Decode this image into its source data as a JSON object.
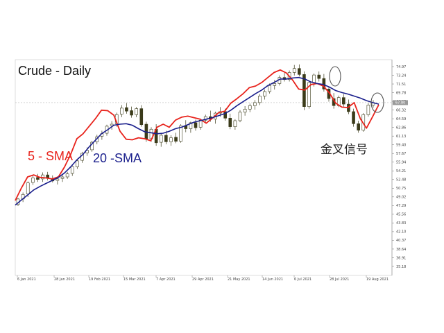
{
  "chart_data": {
    "type": "candlestick",
    "title": "Crude - Daily",
    "yticks": [
      "74.97",
      "73.24",
      "71.51",
      "69.78",
      "68.05",
      "66.32",
      "64.59",
      "62.86",
      "61.13",
      "59.40",
      "57.67",
      "55.94",
      "54.21",
      "52.48",
      "50.75",
      "49.02",
      "47.29",
      "45.56",
      "43.83",
      "42.10",
      "40.37",
      "38.64",
      "36.91",
      "35.18"
    ],
    "ylim": [
      35.18,
      74.97
    ],
    "current_price": "67.80",
    "xticks": [
      "6 Jan 2021",
      "28 Jan 2021",
      "19 Feb 2021",
      "15 Mar 2021",
      "7 Apr 2021",
      "29 Apr 2021",
      "21 May 2021",
      "14 Jun 2021",
      "6 Jul 2021",
      "28 Jul 2021",
      "19 Aug 2021"
    ],
    "series": [
      {
        "name": "5 - SMA",
        "color": "#e8231c",
        "values": [
          48.3,
          50.8,
          53.0,
          53.4,
          52.9,
          52.8,
          52.6,
          53.0,
          55.0,
          57.5,
          60.6,
          61.6,
          63.1,
          64.6,
          66.3,
          66.2,
          65.3,
          62.1,
          60.5,
          60.4,
          60.8,
          60.6,
          60.2,
          62.9,
          63.5,
          62.9,
          64.3,
          64.9,
          65.1,
          64.8,
          64.5,
          63.7,
          64.7,
          65.8,
          66.1,
          67.7,
          68.6,
          69.6,
          70.8,
          71.1,
          71.8,
          72.8,
          73.8,
          74.3,
          73.7,
          72.3,
          70.5,
          70.3,
          71.4,
          71.6,
          71.1,
          69.7,
          67.7,
          66.9,
          66.8,
          67.8,
          64.6,
          62.7,
          65.0,
          67.4
        ]
      },
      {
        "name": "20 -SMA",
        "color": "#1a1f8c",
        "values": [
          47.4,
          48.4,
          49.4,
          50.4,
          51.1,
          51.7,
          52.3,
          52.9,
          53.8,
          55.0,
          56.4,
          57.5,
          59.0,
          60.3,
          61.6,
          62.4,
          63.3,
          63.5,
          63.6,
          63.3,
          62.6,
          62.0,
          61.8,
          61.6,
          61.7,
          62.1,
          62.6,
          62.9,
          63.4,
          63.9,
          64.2,
          64.5,
          64.8,
          65.2,
          65.6,
          66.3,
          67.2,
          68.0,
          68.8,
          69.6,
          70.3,
          71.2,
          71.8,
          72.5,
          72.5,
          72.7,
          72.8,
          72.5,
          71.9,
          71.6,
          71.4,
          70.9,
          70.2,
          69.8,
          69.5,
          69.1,
          68.7,
          68.2,
          67.8,
          67.5
        ]
      }
    ],
    "candles": [
      [
        47.5,
        48.8,
        47.2,
        48.6
      ],
      [
        48.6,
        49.9,
        48.0,
        49.5
      ],
      [
        49.6,
        52.1,
        49.0,
        51.8
      ],
      [
        51.9,
        53.3,
        51.4,
        52.8
      ],
      [
        52.9,
        53.6,
        52.0,
        52.5
      ],
      [
        52.6,
        53.9,
        52.0,
        53.4
      ],
      [
        53.4,
        54.0,
        52.3,
        52.7
      ],
      [
        52.6,
        53.3,
        51.9,
        52.2
      ],
      [
        52.3,
        53.1,
        51.5,
        52.6
      ],
      [
        52.7,
        53.4,
        52.0,
        53.0
      ],
      [
        53.0,
        54.0,
        52.6,
        53.6
      ],
      [
        53.7,
        55.3,
        53.2,
        55.1
      ],
      [
        55.0,
        56.5,
        54.6,
        56.2
      ],
      [
        56.3,
        58.0,
        55.8,
        57.7
      ],
      [
        57.8,
        58.9,
        57.2,
        58.3
      ],
      [
        58.4,
        60.2,
        58.0,
        59.9
      ],
      [
        60.0,
        61.4,
        59.5,
        61.0
      ],
      [
        61.1,
        62.2,
        60.4,
        61.6
      ],
      [
        61.7,
        63.4,
        61.2,
        63.1
      ],
      [
        63.2,
        64.1,
        62.4,
        63.5
      ],
      [
        63.6,
        65.8,
        63.0,
        65.4
      ],
      [
        65.5,
        67.3,
        64.9,
        66.7
      ],
      [
        66.8,
        67.7,
        65.6,
        66.1
      ],
      [
        66.2,
        67.0,
        64.8,
        65.3
      ],
      [
        65.4,
        66.9,
        64.9,
        66.6
      ],
      [
        66.6,
        67.3,
        63.0,
        63.4
      ],
      [
        63.5,
        64.0,
        60.0,
        60.6
      ],
      [
        60.6,
        62.9,
        60.0,
        62.5
      ],
      [
        62.5,
        63.5,
        59.2,
        59.8
      ],
      [
        59.9,
        61.7,
        59.0,
        61.3
      ],
      [
        61.3,
        62.2,
        59.5,
        60.0
      ],
      [
        60.0,
        61.3,
        59.2,
        60.8
      ],
      [
        60.9,
        61.8,
        59.7,
        60.1
      ],
      [
        60.1,
        63.5,
        59.8,
        63.2
      ],
      [
        63.2,
        64.3,
        61.9,
        62.6
      ],
      [
        62.6,
        64.0,
        61.8,
        63.8
      ],
      [
        63.8,
        64.4,
        62.2,
        62.8
      ],
      [
        62.9,
        64.6,
        62.4,
        64.3
      ],
      [
        64.3,
        65.4,
        63.8,
        65.0
      ],
      [
        65.0,
        66.2,
        64.0,
        64.5
      ],
      [
        64.5,
        66.0,
        63.6,
        65.7
      ],
      [
        65.7,
        66.9,
        65.0,
        66.0
      ],
      [
        66.0,
        66.6,
        64.2,
        64.7
      ],
      [
        64.7,
        65.6,
        62.5,
        63.0
      ],
      [
        63.0,
        64.5,
        62.4,
        64.2
      ],
      [
        64.2,
        66.3,
        63.9,
        65.9
      ],
      [
        65.9,
        67.1,
        65.2,
        66.5
      ],
      [
        66.5,
        67.6,
        65.9,
        67.2
      ],
      [
        67.2,
        68.3,
        66.4,
        67.8
      ],
      [
        67.8,
        69.5,
        67.3,
        69.1
      ],
      [
        69.1,
        70.4,
        68.4,
        70.0
      ],
      [
        70.0,
        71.6,
        69.6,
        71.2
      ],
      [
        71.2,
        72.3,
        70.4,
        71.6
      ],
      [
        71.6,
        73.2,
        71.2,
        72.8
      ],
      [
        72.8,
        73.7,
        72.0,
        72.4
      ],
      [
        72.4,
        74.2,
        72.0,
        73.8
      ],
      [
        73.8,
        75.3,
        73.2,
        74.6
      ],
      [
        74.6,
        75.4,
        73.0,
        73.4
      ],
      [
        73.4,
        74.0,
        66.3,
        67.0
      ],
      [
        67.0,
        72.2,
        66.6,
        71.8
      ],
      [
        71.8,
        73.6,
        71.0,
        73.3
      ],
      [
        73.3,
        74.0,
        72.0,
        72.6
      ],
      [
        72.6,
        73.5,
        70.0,
        70.5
      ],
      [
        70.5,
        71.0,
        68.0,
        68.6
      ],
      [
        68.6,
        69.7,
        66.6,
        67.2
      ],
      [
        67.2,
        69.2,
        66.9,
        68.8
      ],
      [
        68.8,
        69.5,
        67.0,
        67.5
      ],
      [
        67.5,
        68.4,
        65.5,
        66.0
      ],
      [
        66.0,
        66.6,
        63.0,
        63.6
      ],
      [
        63.6,
        64.2,
        61.8,
        62.3
      ],
      [
        62.3,
        65.7,
        62.0,
        65.4
      ],
      [
        65.4,
        67.7,
        65.0,
        67.3
      ],
      [
        67.3,
        68.3,
        66.8,
        67.8
      ]
    ],
    "annotation": "金叉信号",
    "grid": false
  },
  "labels": {
    "title": "Crude - Daily",
    "sma5": "5 - SMA",
    "sma20": "20 -SMA",
    "cross": "金叉信号"
  }
}
